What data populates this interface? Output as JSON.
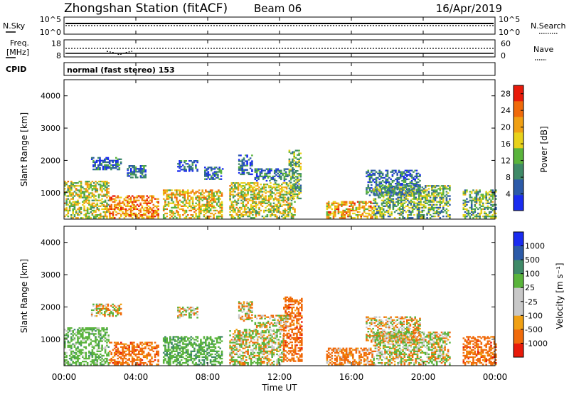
{
  "header": {
    "station": "Zhongshan Station (fitACF)",
    "beam": "Beam 06",
    "date": "16/Apr/2019"
  },
  "strip_panels": {
    "nsky_label": "N.Sky",
    "nsky_ticks": [
      "10^5",
      "10^0"
    ],
    "nsearch_label": "N.Search",
    "nsearch_ticks": [
      "10^5",
      "10^0"
    ],
    "freq_label_1": "Freq.",
    "freq_label_2": "[MHz]",
    "freq_ticks": [
      "18",
      "8"
    ],
    "nave_label": "Nave",
    "nave_ticks": [
      "60",
      "0"
    ],
    "cpid_label": "CPID",
    "cpid_text": "normal (fast stereo) 153"
  },
  "x_axis": {
    "tick_labels": [
      "00:00",
      "04:00",
      "08:00",
      "12:00",
      "16:00",
      "20:00",
      "00:00"
    ],
    "label": "Time UT"
  },
  "colors": {
    "power": [
      "#1a2cf0",
      "#2c5aa8",
      "#3f8a68",
      "#5ab43c",
      "#e8d21a",
      "#f0a014",
      "#f06a0a",
      "#e81a0a"
    ],
    "velocity": [
      "#e81a0a",
      "#f06a0a",
      "#f0a014",
      "#c8c8c8",
      "#c8c8c8",
      "#5ab43c",
      "#3f8a68",
      "#2c5aa8",
      "#1a2cf0"
    ]
  },
  "chart_data": [
    {
      "type": "heatmap",
      "title": "Power",
      "xlabel": "Time UT",
      "ylabel": "Slant Range [km]",
      "xlim": [
        0,
        24
      ],
      "ylim": [
        180,
        4500
      ],
      "y_ticks": [
        "1000",
        "2000",
        "3000",
        "4000"
      ],
      "colorbar_label": "Power [dB]",
      "colorbar_ticks": [
        "4",
        "8",
        "12",
        "16",
        "20",
        "24",
        "28"
      ],
      "colorbar_range": [
        0,
        30
      ],
      "echo_regions": [
        {
          "t0": 0.0,
          "t1": 2.5,
          "r0": 200,
          "r1": 1350,
          "level": 16
        },
        {
          "t0": 2.5,
          "t1": 5.2,
          "r0": 200,
          "r1": 900,
          "level": 22
        },
        {
          "t0": 5.5,
          "t1": 8.8,
          "r0": 200,
          "r1": 1100,
          "level": 18
        },
        {
          "t0": 9.2,
          "t1": 12.8,
          "r0": 200,
          "r1": 1300,
          "level": 16
        },
        {
          "t0": 12.5,
          "t1": 13.2,
          "r0": 800,
          "r1": 2300,
          "level": 12
        },
        {
          "t0": 14.6,
          "t1": 17.2,
          "r0": 200,
          "r1": 700,
          "level": 20
        },
        {
          "t0": 16.8,
          "t1": 19.8,
          "r0": 900,
          "r1": 1700,
          "level": 7
        },
        {
          "t0": 17.2,
          "t1": 21.5,
          "r0": 200,
          "r1": 1200,
          "level": 12
        },
        {
          "t0": 22.2,
          "t1": 24.0,
          "r0": 200,
          "r1": 1100,
          "level": 12
        },
        {
          "t0": 1.5,
          "t1": 3.2,
          "r0": 1700,
          "r1": 2100,
          "level": 6
        },
        {
          "t0": 3.5,
          "t1": 4.5,
          "r0": 1450,
          "r1": 1850,
          "level": 6
        },
        {
          "t0": 6.3,
          "t1": 7.4,
          "r0": 1650,
          "r1": 2000,
          "level": 6
        },
        {
          "t0": 7.8,
          "t1": 8.8,
          "r0": 1400,
          "r1": 1800,
          "level": 6
        },
        {
          "t0": 9.7,
          "t1": 10.5,
          "r0": 1550,
          "r1": 2150,
          "level": 6
        },
        {
          "t0": 10.6,
          "t1": 12.4,
          "r0": 1350,
          "r1": 1750,
          "level": 7
        }
      ]
    },
    {
      "type": "heatmap",
      "title": "Velocity",
      "xlabel": "Time UT",
      "ylabel": "Slant Range [km]",
      "xlim": [
        0,
        24
      ],
      "ylim": [
        180,
        4500
      ],
      "y_ticks": [
        "1000",
        "2000",
        "3000",
        "4000"
      ],
      "colorbar_label": "Velocity [m s⁻¹]",
      "colorbar_ticks": [
        "1000",
        "500",
        "100",
        "25",
        "-25",
        "-100",
        "-500",
        "-1000"
      ],
      "echo_regions": [
        {
          "t0": 0.0,
          "t1": 2.5,
          "r0": 200,
          "r1": 1350,
          "level": 300
        },
        {
          "t0": 2.5,
          "t1": 5.2,
          "r0": 200,
          "r1": 900,
          "level": -300
        },
        {
          "t0": 5.5,
          "t1": 8.8,
          "r0": 200,
          "r1": 1100,
          "level": 400
        },
        {
          "t0": 9.2,
          "t1": 12.2,
          "r0": 200,
          "r1": 1300,
          "level": 60
        },
        {
          "t0": 12.2,
          "t1": 13.2,
          "r0": 300,
          "r1": 2300,
          "level": -300
        },
        {
          "t0": 14.6,
          "t1": 17.2,
          "r0": 200,
          "r1": 700,
          "level": -200
        },
        {
          "t0": 16.8,
          "t1": 19.8,
          "r0": 900,
          "r1": 1700,
          "level": 0
        },
        {
          "t0": 17.2,
          "t1": 21.5,
          "r0": 200,
          "r1": 1200,
          "level": 60
        },
        {
          "t0": 22.2,
          "t1": 24.0,
          "r0": 200,
          "r1": 1100,
          "level": -300
        },
        {
          "t0": 1.5,
          "t1": 3.2,
          "r0": 1700,
          "r1": 2100,
          "level": 0
        },
        {
          "t0": 6.3,
          "t1": 7.4,
          "r0": 1650,
          "r1": 2000,
          "level": 0
        },
        {
          "t0": 9.7,
          "t1": 10.5,
          "r0": 1550,
          "r1": 2150,
          "level": 0
        },
        {
          "t0": 10.6,
          "t1": 12.4,
          "r0": 1350,
          "r1": 1750,
          "level": 0
        }
      ]
    }
  ]
}
